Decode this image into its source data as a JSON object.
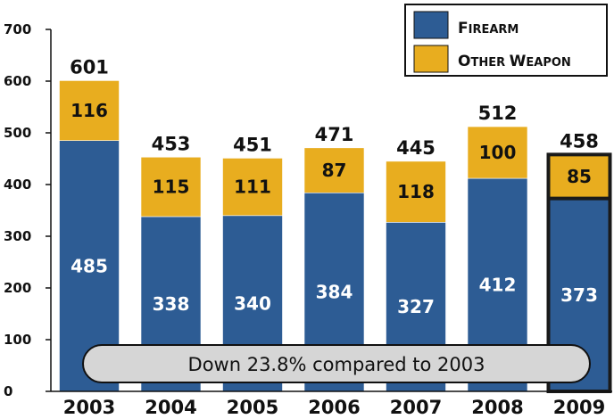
{
  "chart_data": {
    "type": "bar",
    "stacked": true,
    "categories": [
      "2003",
      "2004",
      "2005",
      "2006",
      "2007",
      "2008",
      "2009"
    ],
    "series": [
      {
        "name": "Firearm",
        "color": "#2d5c94",
        "values": [
          485,
          338,
          340,
          384,
          327,
          412,
          373
        ]
      },
      {
        "name": "Other Weapon",
        "color": "#e8ad1f",
        "values": [
          116,
          115,
          111,
          87,
          118,
          100,
          85
        ]
      }
    ],
    "totals": [
      601,
      453,
      451,
      471,
      445,
      512,
      458
    ],
    "highlighted_category": "2009",
    "ylim": [
      0,
      700
    ],
    "yticks": [
      0,
      100,
      200,
      300,
      400,
      500,
      600,
      700
    ],
    "legend_position": "top-right",
    "grid": false,
    "annotation": "Down 23.8% compared to 2003"
  },
  "legend": {
    "firearm": {
      "cap": "F",
      "rest": "IREARM"
    },
    "other": {
      "cap1": "O",
      "rest1": "THER ",
      "cap2": "W",
      "rest2": "EAPON"
    }
  }
}
